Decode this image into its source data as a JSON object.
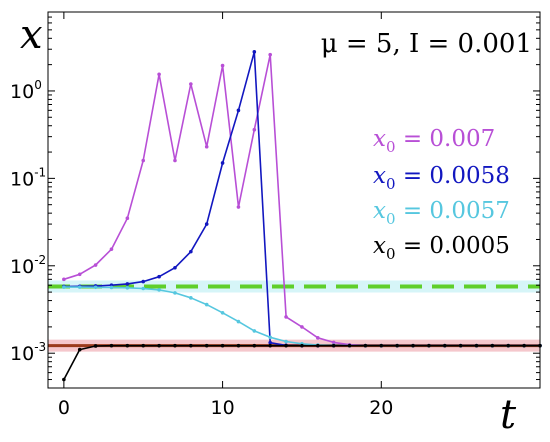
{
  "chart_data": {
    "type": "line",
    "title": "μ = 5, I = 0.001",
    "xlabel": "t",
    "ylabel": "x",
    "xlim": [
      -1,
      30
    ],
    "ylim": [
      0.0004,
      8
    ],
    "yscale": "log",
    "grid": false,
    "legend_position": "right",
    "x_ticks": [
      {
        "value": 0,
        "label": "0"
      },
      {
        "value": 10,
        "label": "10"
      },
      {
        "value": 20,
        "label": "20"
      }
    ],
    "y_ticks": [
      {
        "value": 1,
        "base": "10",
        "exp": "0"
      },
      {
        "value": 0.1,
        "base": "10",
        "exp": "-1"
      },
      {
        "value": 0.01,
        "base": "10",
        "exp": "-2"
      },
      {
        "value": 0.001,
        "base": "10",
        "exp": "-3"
      }
    ],
    "reference_lines": [
      {
        "y": 0.0058,
        "color": "#5fcf2a",
        "style": "dashed",
        "halo": "#c8f2f6"
      },
      {
        "y": 0.00122,
        "color": "#9a3a1c",
        "style": "solid",
        "halo": "#f2b4bb"
      }
    ],
    "series": [
      {
        "name": "x₀ = 0.007",
        "label_var": "x",
        "label_sub": "0",
        "label_val": " = 0.007",
        "color": "#b84fd6",
        "x": [
          0,
          1,
          2,
          3,
          4,
          5,
          6,
          7,
          8,
          9,
          10,
          11,
          12,
          13,
          14,
          15,
          16,
          17,
          18,
          19,
          20,
          21,
          22,
          23,
          24,
          25,
          26,
          27,
          28,
          29,
          30
        ],
        "y": [
          0.007,
          0.008,
          0.0102,
          0.0155,
          0.035,
          0.16,
          1.55,
          0.16,
          1.2,
          0.23,
          1.95,
          0.047,
          0.36,
          2.6,
          0.0026,
          0.002,
          0.0015,
          0.00133,
          0.00125,
          0.00122,
          0.00122,
          0.00122,
          0.00122,
          0.00122,
          0.00122,
          0.00122,
          0.00122,
          0.00122,
          0.00122,
          0.00122,
          0.00122
        ]
      },
      {
        "name": "x₀ = 0.0058",
        "label_var": "x",
        "label_sub": "0",
        "label_val": " = 0.0058",
        "color": "#1217c0",
        "x": [
          0,
          1,
          2,
          3,
          4,
          5,
          6,
          7,
          8,
          9,
          10,
          11,
          12,
          13,
          14,
          15,
          16,
          17,
          18,
          19,
          20,
          21,
          22,
          23,
          24,
          25,
          26,
          27,
          28,
          29,
          30
        ],
        "y": [
          0.0058,
          0.00582,
          0.00588,
          0.006,
          0.0062,
          0.0066,
          0.0075,
          0.0095,
          0.0145,
          0.03,
          0.15,
          0.6,
          2.8,
          0.00132,
          0.00123,
          0.00122,
          0.00122,
          0.00122,
          0.00122,
          0.00122,
          0.00122,
          0.00122,
          0.00122,
          0.00122,
          0.00122,
          0.00122,
          0.00122,
          0.00122,
          0.00122,
          0.00122,
          0.00122
        ]
      },
      {
        "name": "x₀ = 0.0057",
        "label_var": "x",
        "label_sub": "0",
        "label_val": " = 0.0057",
        "color": "#56c7df",
        "x": [
          0,
          1,
          2,
          3,
          4,
          5,
          6,
          7,
          8,
          9,
          10,
          11,
          12,
          13,
          14,
          15,
          16,
          17,
          18,
          19,
          20,
          21,
          22,
          23,
          24,
          25,
          26,
          27,
          28,
          29,
          30
        ],
        "y": [
          0.0057,
          0.0057,
          0.00568,
          0.00565,
          0.0056,
          0.0055,
          0.0053,
          0.0049,
          0.0043,
          0.0036,
          0.0029,
          0.0023,
          0.0018,
          0.00152,
          0.00136,
          0.00128,
          0.00124,
          0.00123,
          0.00122,
          0.00122,
          0.00122,
          0.00122,
          0.00122,
          0.00122,
          0.00122,
          0.00122,
          0.00122,
          0.00122,
          0.00122,
          0.00122,
          0.00122
        ]
      },
      {
        "name": "x₀ = 0.0005",
        "label_var": "x",
        "label_sub": "0",
        "label_val": " = 0.0005",
        "color": "#000000",
        "x": [
          0,
          1,
          2,
          3,
          4,
          5,
          6,
          7,
          8,
          9,
          10,
          11,
          12,
          13,
          14,
          15,
          16,
          17,
          18,
          19,
          20,
          21,
          22,
          23,
          24,
          25,
          26,
          27,
          28,
          29,
          30
        ],
        "y": [
          0.0005,
          0.0011,
          0.00121,
          0.00122,
          0.00122,
          0.00122,
          0.00122,
          0.00122,
          0.00122,
          0.00122,
          0.00122,
          0.00122,
          0.00122,
          0.00122,
          0.00122,
          0.00122,
          0.00122,
          0.00122,
          0.00122,
          0.00122,
          0.00122,
          0.00122,
          0.00122,
          0.00122,
          0.00122,
          0.00122,
          0.00122,
          0.00122,
          0.00122,
          0.00122,
          0.00122
        ]
      }
    ]
  }
}
